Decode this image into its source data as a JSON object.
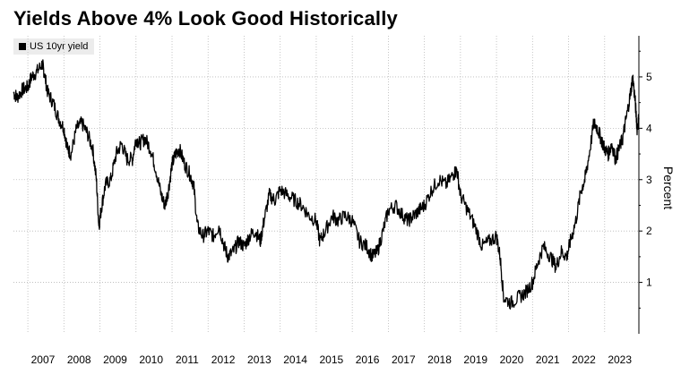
{
  "chart_data": {
    "type": "line",
    "title": "Yields Above 4% Look Good Historically",
    "ylabel": "Percent",
    "xlabel": "",
    "legend": "US 10yr yield",
    "legend_position": "top-left",
    "ylim": [
      0,
      5.8
    ],
    "xlim": [
      2006.6,
      2023.95
    ],
    "yticks": [
      1,
      2,
      3,
      4,
      5
    ],
    "xtick_labels": [
      "2007",
      "2008",
      "2009",
      "2010",
      "2011",
      "2012",
      "2013",
      "2014",
      "2015",
      "2016",
      "2017",
      "2018",
      "2019",
      "2020",
      "2021",
      "2022",
      "2023"
    ],
    "grid": true,
    "series": [
      {
        "name": "US 10yr yield",
        "x": [
          2006.6,
          2006.7,
          2006.85,
          2007.0,
          2007.1,
          2007.25,
          2007.4,
          2007.45,
          2007.55,
          2007.7,
          2007.85,
          2008.0,
          2008.1,
          2008.2,
          2008.35,
          2008.5,
          2008.65,
          2008.8,
          2008.9,
          2008.97,
          2009.05,
          2009.15,
          2009.3,
          2009.45,
          2009.6,
          2009.75,
          2009.9,
          2010.0,
          2010.1,
          2010.25,
          2010.4,
          2010.55,
          2010.7,
          2010.8,
          2010.9,
          2011.0,
          2011.1,
          2011.2,
          2011.35,
          2011.5,
          2011.6,
          2011.7,
          2011.85,
          2012.0,
          2012.15,
          2012.3,
          2012.45,
          2012.55,
          2012.7,
          2012.85,
          2013.0,
          2013.15,
          2013.3,
          2013.45,
          2013.55,
          2013.7,
          2013.85,
          2014.0,
          2014.2,
          2014.4,
          2014.6,
          2014.8,
          2015.0,
          2015.1,
          2015.25,
          2015.45,
          2015.6,
          2015.8,
          2016.0,
          2016.2,
          2016.4,
          2016.55,
          2016.7,
          2016.85,
          2017.0,
          2017.2,
          2017.4,
          2017.55,
          2017.7,
          2017.85,
          2018.0,
          2018.2,
          2018.4,
          2018.6,
          2018.8,
          2018.9,
          2019.0,
          2019.2,
          2019.4,
          2019.6,
          2019.8,
          2020.0,
          2020.1,
          2020.2,
          2020.4,
          2020.6,
          2020.8,
          2021.0,
          2021.15,
          2021.3,
          2021.5,
          2021.65,
          2021.8,
          2021.95,
          2022.05,
          2022.2,
          2022.35,
          2022.45,
          2022.55,
          2022.7,
          2022.8,
          2022.9,
          2023.0,
          2023.1,
          2023.2,
          2023.3,
          2023.4,
          2023.5,
          2023.6,
          2023.7,
          2023.78,
          2023.85,
          2023.9,
          2023.95
        ],
        "y": [
          4.7,
          4.6,
          4.75,
          4.8,
          5.0,
          5.1,
          5.25,
          5.1,
          4.7,
          4.5,
          4.2,
          4.0,
          3.6,
          3.5,
          4.0,
          4.1,
          3.9,
          3.6,
          3.0,
          2.1,
          2.5,
          2.9,
          3.0,
          3.5,
          3.7,
          3.4,
          3.4,
          3.8,
          3.7,
          3.8,
          3.6,
          3.2,
          2.7,
          2.5,
          2.8,
          3.3,
          3.5,
          3.6,
          3.3,
          3.1,
          2.9,
          2.1,
          1.9,
          2.0,
          1.9,
          2.1,
          1.7,
          1.5,
          1.6,
          1.8,
          1.7,
          1.9,
          2.0,
          1.8,
          2.2,
          2.7,
          2.6,
          2.8,
          2.7,
          2.6,
          2.5,
          2.3,
          2.2,
          1.8,
          2.0,
          2.3,
          2.2,
          2.3,
          2.2,
          1.8,
          1.7,
          1.5,
          1.6,
          2.0,
          2.4,
          2.5,
          2.3,
          2.2,
          2.3,
          2.4,
          2.5,
          2.8,
          3.0,
          2.9,
          3.1,
          3.2,
          2.7,
          2.4,
          2.1,
          1.7,
          1.8,
          1.9,
          1.5,
          0.7,
          0.6,
          0.7,
          0.8,
          1.0,
          1.4,
          1.7,
          1.5,
          1.3,
          1.6,
          1.5,
          1.8,
          2.2,
          2.8,
          3.0,
          3.4,
          4.1,
          4.0,
          3.8,
          3.6,
          3.5,
          3.7,
          3.4,
          3.6,
          3.8,
          4.2,
          4.6,
          5.0,
          4.5,
          4.0,
          4.2
        ]
      }
    ]
  }
}
